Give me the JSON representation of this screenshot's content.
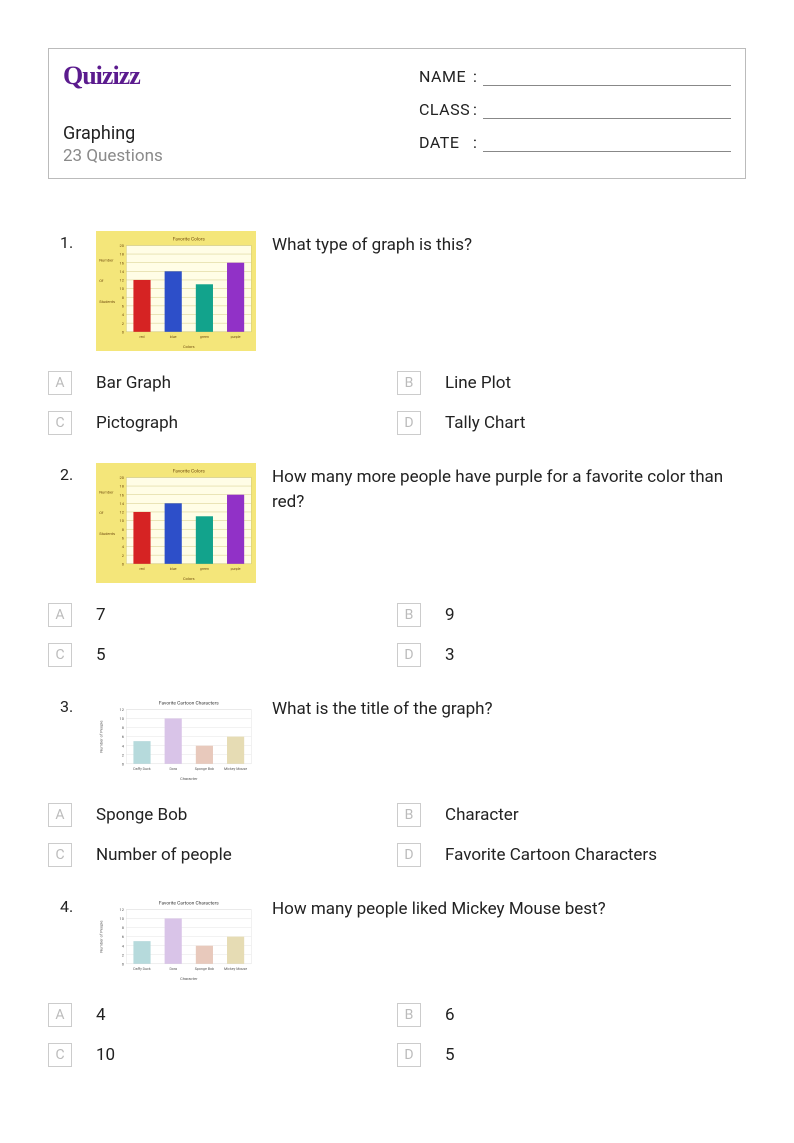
{
  "logo_text": "Quizizz",
  "quiz": {
    "title": "Graphing",
    "count": "23 Questions"
  },
  "header_fields": [
    {
      "label": "NAME"
    },
    {
      "label": "CLASS"
    },
    {
      "label": "DATE"
    }
  ],
  "choice_letters": [
    "A",
    "B",
    "C",
    "D"
  ],
  "chart_fav_colors": {
    "title": "Favorite Colors",
    "ylabel_lines": [
      "Number",
      "Of",
      "Students"
    ],
    "xlabel": "Colors",
    "background": "#f4e67a",
    "chart_bg": "#fffde6",
    "categories": [
      "red",
      "blue",
      "green",
      "purple"
    ],
    "values": [
      12,
      14,
      11,
      16
    ],
    "bar_colors": [
      "#d62323",
      "#2d4fc9",
      "#12a38c",
      "#9131c7"
    ],
    "ylim": [
      0,
      20
    ],
    "ytick_step": 2,
    "title_color": "#704c10",
    "axis_text_color": "#704c10",
    "grid_color": "#c9c070"
  },
  "chart_cartoon": {
    "title": "Favorite Cartoon Characters",
    "ylabel": "Number of People",
    "xlabel": "Character",
    "background": "#ffffff",
    "chart_bg": "#ffffff",
    "categories": [
      "Daffy Duck",
      "Dora",
      "Sponge Bob",
      "Mickey Mouse"
    ],
    "values": [
      5,
      10,
      4,
      6
    ],
    "bar_colors": [
      "#b6dadc",
      "#d9c4e8",
      "#e8c9bc",
      "#e6dcb4"
    ],
    "ylim": [
      0,
      12
    ],
    "ytick_step": 2,
    "title_color": "#333333",
    "axis_text_color": "#555555",
    "grid_color": "#dddddd"
  },
  "questions": [
    {
      "num": "1.",
      "chart_ref": "fav_colors",
      "text": "What type of graph is this?",
      "choices": [
        "Bar Graph",
        "Line Plot",
        "Pictograph",
        "Tally Chart"
      ]
    },
    {
      "num": "2.",
      "chart_ref": "fav_colors",
      "text": "How many more people have purple for a favorite color than red?",
      "choices": [
        "7",
        "9",
        "5",
        "3"
      ]
    },
    {
      "num": "3.",
      "chart_ref": "cartoon",
      "text": "What is the title of the graph?",
      "choices": [
        "Sponge Bob",
        "Character",
        "Number of people",
        "Favorite Cartoon Characters"
      ]
    },
    {
      "num": "4.",
      "chart_ref": "cartoon",
      "text": "How many people liked Mickey Mouse best?",
      "choices": [
        "4",
        "6",
        "10",
        "5"
      ]
    }
  ]
}
